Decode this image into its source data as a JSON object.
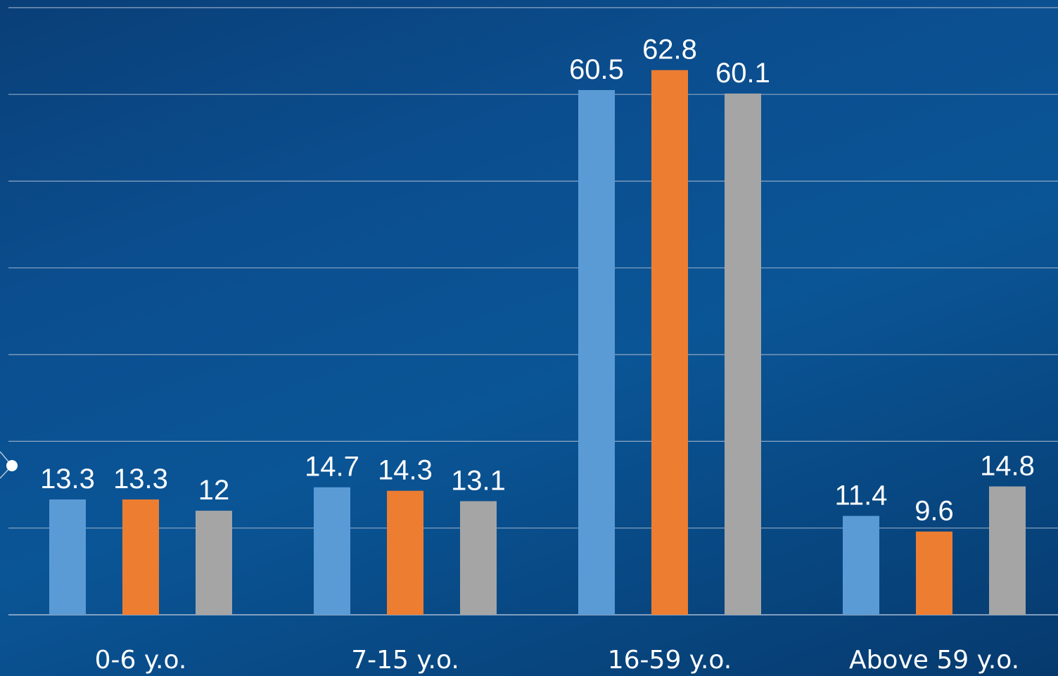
{
  "chart_data": {
    "type": "bar",
    "categories": [
      "0-6 y.o.",
      "7-15 y.o.",
      "16-59 y.o.",
      "Above 59 y.o."
    ],
    "series": [
      {
        "values": [
          13.3,
          14.7,
          60.5,
          11.4
        ],
        "color": "#5b9bd5"
      },
      {
        "values": [
          13.3,
          14.3,
          62.8,
          9.6
        ],
        "color": "#ed7d31"
      },
      {
        "values": [
          12,
          13.1,
          60.1,
          14.8
        ],
        "color": "#a5a5a5"
      }
    ],
    "value_labels": [
      [
        "13.3",
        "14.7",
        "60.5",
        "11.4"
      ],
      [
        "13.3",
        "14.3",
        "62.8",
        "9.6"
      ],
      [
        "12",
        "13.1",
        "60.1",
        "14.8"
      ]
    ],
    "ylim": [
      0,
      70
    ],
    "grid_step": 10,
    "grid": true,
    "legend": "none",
    "title": "",
    "xlabel": "",
    "ylabel": ""
  }
}
